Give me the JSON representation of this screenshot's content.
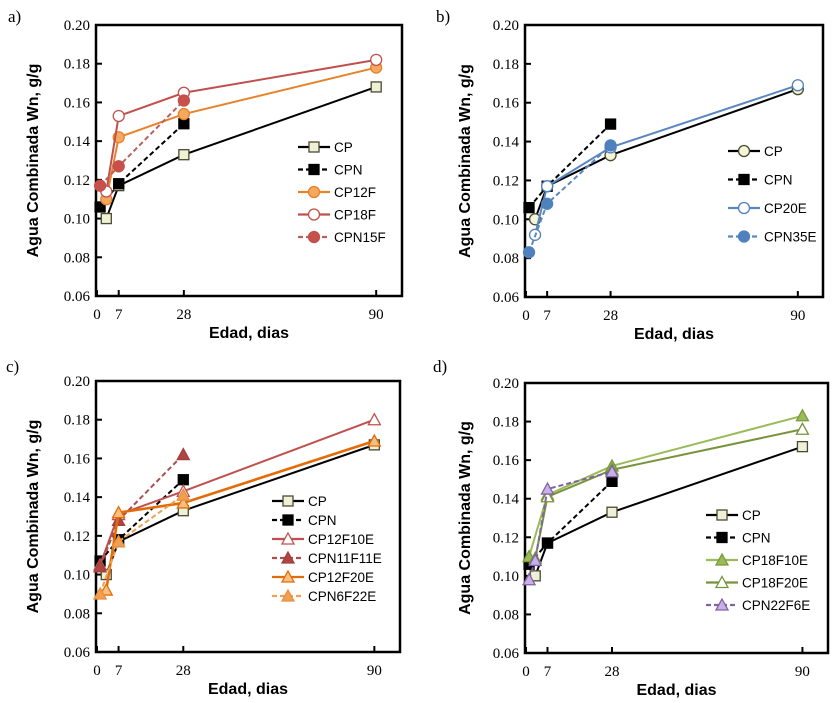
{
  "chart_data": [
    {
      "type": "line",
      "panel_label": "a)",
      "xlabel": "Edad, dias",
      "ylabel": "Agua Combinada Wn, g/g",
      "xticks": [
        "0",
        "7",
        "28",
        "90"
      ],
      "xtick_values": [
        0,
        7,
        28,
        90
      ],
      "yticks": [
        "0.06",
        "0.08",
        "0.10",
        "0.12",
        "0.14",
        "0.16",
        "0.18",
        "0.20"
      ],
      "xlim": [
        0,
        98
      ],
      "ylim": [
        0.06,
        0.2
      ],
      "legend": "right",
      "series": [
        {
          "name": "CP",
          "color": "#000000",
          "fill": "#eef0d8",
          "edge": "#4a4a30",
          "marker": "square",
          "dash": false,
          "x": [
            3,
            7,
            28,
            90
          ],
          "y": [
            0.1,
            0.117,
            0.133,
            0.168
          ]
        },
        {
          "name": "CPN",
          "color": "#000000",
          "fill": "#000000",
          "edge": "#000000",
          "marker": "square",
          "dash": true,
          "x": [
            1,
            7,
            28
          ],
          "y": [
            0.106,
            0.118,
            0.149
          ]
        },
        {
          "name": "CP12F",
          "color": "#e8822a",
          "fill": "#f5a860",
          "edge": "#e8822a",
          "marker": "circle",
          "dash": false,
          "x": [
            3,
            7,
            28,
            90
          ],
          "y": [
            0.11,
            0.142,
            0.154,
            0.178
          ]
        },
        {
          "name": "CP18F",
          "color": "#c0504d",
          "fill": "#ffffff",
          "edge": "#c0504d",
          "marker": "circle",
          "dash": false,
          "x": [
            3,
            7,
            28,
            90
          ],
          "y": [
            0.114,
            0.153,
            0.165,
            0.182
          ]
        },
        {
          "name": "CPN15F",
          "color": "#b8605a",
          "fill": "#c9504a",
          "edge": "#c0504d",
          "marker": "circle",
          "dash": true,
          "x": [
            1,
            7,
            28
          ],
          "y": [
            0.117,
            0.127,
            0.161
          ]
        }
      ]
    },
    {
      "type": "line",
      "panel_label": "b)",
      "xlabel": "Edad, dias",
      "ylabel": "Agua Combinada Wn, g/g",
      "xticks": [
        "0",
        "7",
        "28",
        "90"
      ],
      "xtick_values": [
        0,
        7,
        28,
        90
      ],
      "yticks": [
        "0.06",
        "0.08",
        "0.10",
        "0.12",
        "0.14",
        "0.16",
        "0.18",
        "0.20"
      ],
      "xlim": [
        0,
        98
      ],
      "ylim": [
        0.06,
        0.2
      ],
      "legend": "right",
      "series": [
        {
          "name": "CP",
          "color": "#000000",
          "fill": "#f4f4d8",
          "edge": "#4a4a30",
          "marker": "circle",
          "dash": false,
          "x": [
            3,
            7,
            28,
            90
          ],
          "y": [
            0.1,
            0.117,
            0.133,
            0.167
          ]
        },
        {
          "name": "CPN",
          "color": "#000000",
          "fill": "#000000",
          "edge": "#000000",
          "marker": "square",
          "dash": true,
          "x": [
            1,
            7,
            28
          ],
          "y": [
            0.106,
            0.117,
            0.149
          ]
        },
        {
          "name": "CP20E",
          "color": "#5b87c0",
          "fill": "#ffffff",
          "edge": "#4f81bd",
          "marker": "circle",
          "dash": false,
          "x": [
            3,
            7,
            28,
            90
          ],
          "y": [
            0.092,
            0.117,
            0.137,
            0.169
          ]
        },
        {
          "name": "CPN35E",
          "color": "#5b87c0",
          "fill": "#4f81bd",
          "edge": "#4f81bd",
          "marker": "circle",
          "dash": true,
          "x": [
            1,
            7,
            28
          ],
          "y": [
            0.083,
            0.108,
            0.138
          ]
        }
      ]
    },
    {
      "type": "line",
      "panel_label": "c)",
      "xlabel": "Edad, dias",
      "ylabel": "Agua Combinada Wn, g/g",
      "xticks": [
        "0",
        "7",
        "28",
        "90"
      ],
      "xtick_values": [
        0,
        7,
        28,
        90
      ],
      "yticks": [
        "0.06",
        "0.08",
        "0.10",
        "0.12",
        "0.14",
        "0.16",
        "0.18",
        "0.20"
      ],
      "xlim": [
        0,
        98
      ],
      "ylim": [
        0.06,
        0.2
      ],
      "legend": "right",
      "series": [
        {
          "name": "CP",
          "color": "#000000",
          "fill": "#eef0d8",
          "edge": "#4a4a30",
          "marker": "square",
          "dash": false,
          "x": [
            3,
            7,
            28,
            90
          ],
          "y": [
            0.1,
            0.117,
            0.133,
            0.167
          ]
        },
        {
          "name": "CPN",
          "color": "#000000",
          "fill": "#000000",
          "edge": "#000000",
          "marker": "square",
          "dash": true,
          "x": [
            1,
            7,
            28
          ],
          "y": [
            0.107,
            0.118,
            0.149
          ]
        },
        {
          "name": "CP12F10E",
          "color": "#c0504d",
          "fill": "#ffffff",
          "edge": "#c0504d",
          "marker": "triangle",
          "dash": false,
          "x": [
            1,
            7,
            28,
            90
          ],
          "y": [
            0.105,
            0.131,
            0.143,
            0.18
          ]
        },
        {
          "name": "CPN11F11E",
          "color": "#a8504c",
          "fill": "#b04440",
          "edge": "#a04040",
          "marker": "triangle",
          "dash": true,
          "x": [
            1,
            7,
            28
          ],
          "y": [
            0.104,
            0.128,
            0.162
          ]
        },
        {
          "name": "CP12F20E",
          "color": "#e36c09",
          "fill": "#f8c080",
          "edge": "#e36c09",
          "marker": "triangle",
          "dash": false,
          "x": [
            3,
            7,
            28,
            90
          ],
          "y": [
            0.092,
            0.132,
            0.137,
            0.169
          ]
        },
        {
          "name": "CPN6F22E",
          "color": "#f0a050",
          "fill": "#f0a050",
          "edge": "#e89040",
          "marker": "triangle",
          "dash": true,
          "x": [
            1,
            7,
            28
          ],
          "y": [
            0.09,
            0.117,
            0.141
          ]
        }
      ]
    },
    {
      "type": "line",
      "panel_label": "d)",
      "xlabel": "Edad, dias",
      "ylabel": "Agua Combinada Wn, g/g",
      "xticks": [
        "0",
        "7",
        "28",
        "90"
      ],
      "xtick_values": [
        0,
        7,
        28,
        90
      ],
      "yticks": [
        "0.06",
        "0.08",
        "0.10",
        "0.12",
        "0.14",
        "0.16",
        "0.18",
        "0.20"
      ],
      "xlim": [
        0,
        98
      ],
      "ylim": [
        0.06,
        0.2
      ],
      "legend": "right",
      "series": [
        {
          "name": "CP",
          "color": "#000000",
          "fill": "#eef0d8",
          "edge": "#4a4a30",
          "marker": "square",
          "dash": false,
          "x": [
            3,
            7,
            28,
            90
          ],
          "y": [
            0.1,
            0.117,
            0.133,
            0.167
          ]
        },
        {
          "name": "CPN",
          "color": "#000000",
          "fill": "#000000",
          "edge": "#000000",
          "marker": "square",
          "dash": true,
          "x": [
            1,
            7,
            28
          ],
          "y": [
            0.106,
            0.117,
            0.149
          ]
        },
        {
          "name": "CP18F10E",
          "color": "#9bbb59",
          "fill": "#9bbb59",
          "edge": "#7a9a3c",
          "marker": "triangle",
          "dash": false,
          "x": [
            1,
            7,
            28,
            90
          ],
          "y": [
            0.11,
            0.142,
            0.157,
            0.183
          ]
        },
        {
          "name": "CP18F20E",
          "color": "#77933c",
          "fill": "#ffffff",
          "edge": "#77933c",
          "marker": "triangle",
          "dash": false,
          "x": [
            3,
            7,
            28,
            90
          ],
          "y": [
            0.109,
            0.141,
            0.155,
            0.176
          ]
        },
        {
          "name": "CPN22F6E",
          "color": "#8064a2",
          "fill": "#c8b0e8",
          "edge": "#8064a2",
          "marker": "triangle",
          "dash": true,
          "x": [
            1,
            3,
            7,
            28
          ],
          "y": [
            0.098,
            0.108,
            0.145,
            0.154
          ]
        }
      ]
    }
  ]
}
